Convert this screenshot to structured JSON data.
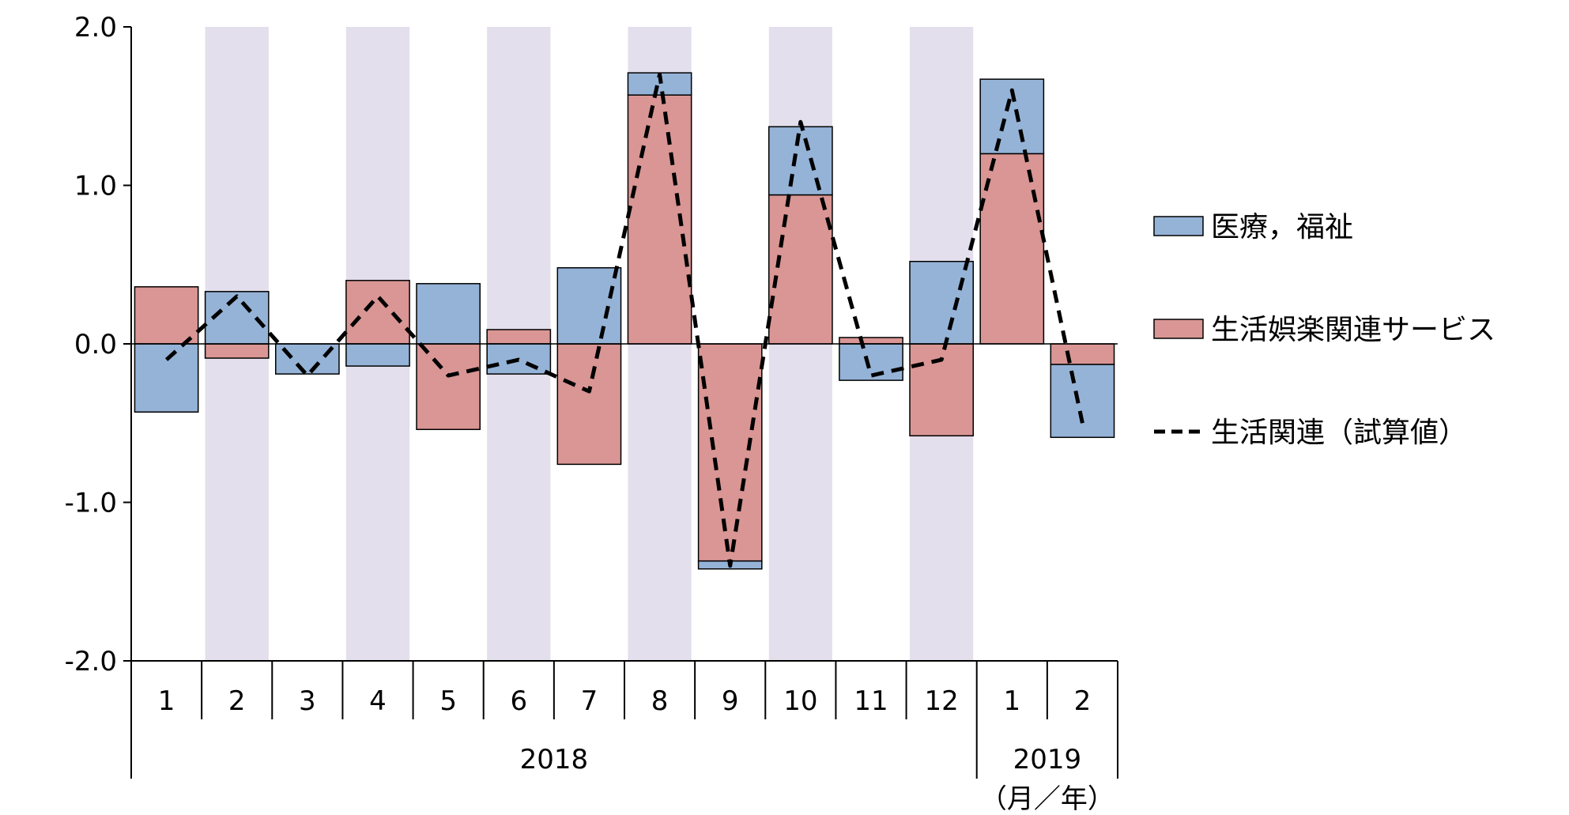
{
  "chart_data": {
    "type": "bar",
    "stacked": true,
    "categories": [
      "1",
      "2",
      "3",
      "4",
      "5",
      "6",
      "7",
      "8",
      "9",
      "10",
      "11",
      "12",
      "1",
      "2"
    ],
    "years": [
      {
        "label": "2018",
        "from": 0,
        "to": 11
      },
      {
        "label": "2019",
        "from": 12,
        "to": 13
      }
    ],
    "unit_note": "（月／年）",
    "ylim": [
      -2.0,
      2.0
    ],
    "yticks": [
      "2.0",
      "1.0",
      "0.0",
      "-1.0",
      "-2.0"
    ],
    "ytick_values": [
      2.0,
      1.0,
      0.0,
      -1.0,
      -2.0
    ],
    "shaded_categories": [
      1,
      3,
      5,
      7,
      9,
      11
    ],
    "series": [
      {
        "name": "生活娯楽関連サービス",
        "kind": "bar",
        "color": "#d99694",
        "values": [
          0.36,
          -0.09,
          0.0,
          0.4,
          -0.54,
          0.09,
          -0.76,
          1.57,
          -1.37,
          0.94,
          0.04,
          -0.58,
          1.2,
          -0.13
        ]
      },
      {
        "name": "医療，福祉",
        "kind": "bar",
        "color": "#95b3d7",
        "values": [
          -0.43,
          0.33,
          -0.19,
          -0.14,
          0.38,
          -0.19,
          0.48,
          0.14,
          -0.05,
          0.43,
          -0.23,
          0.52,
          0.47,
          -0.46
        ]
      },
      {
        "name": "生活関連（試算値）",
        "kind": "line",
        "color": "#000000",
        "dash": true,
        "values": [
          -0.1,
          0.3,
          -0.2,
          0.3,
          -0.2,
          -0.1,
          -0.3,
          1.7,
          -1.4,
          1.4,
          -0.2,
          -0.1,
          1.6,
          -0.5
        ]
      }
    ],
    "legend_order": [
      1,
      0,
      2
    ],
    "legend_position": "right",
    "colors": {
      "shade": "#e4dfec",
      "border": "#000000"
    }
  }
}
